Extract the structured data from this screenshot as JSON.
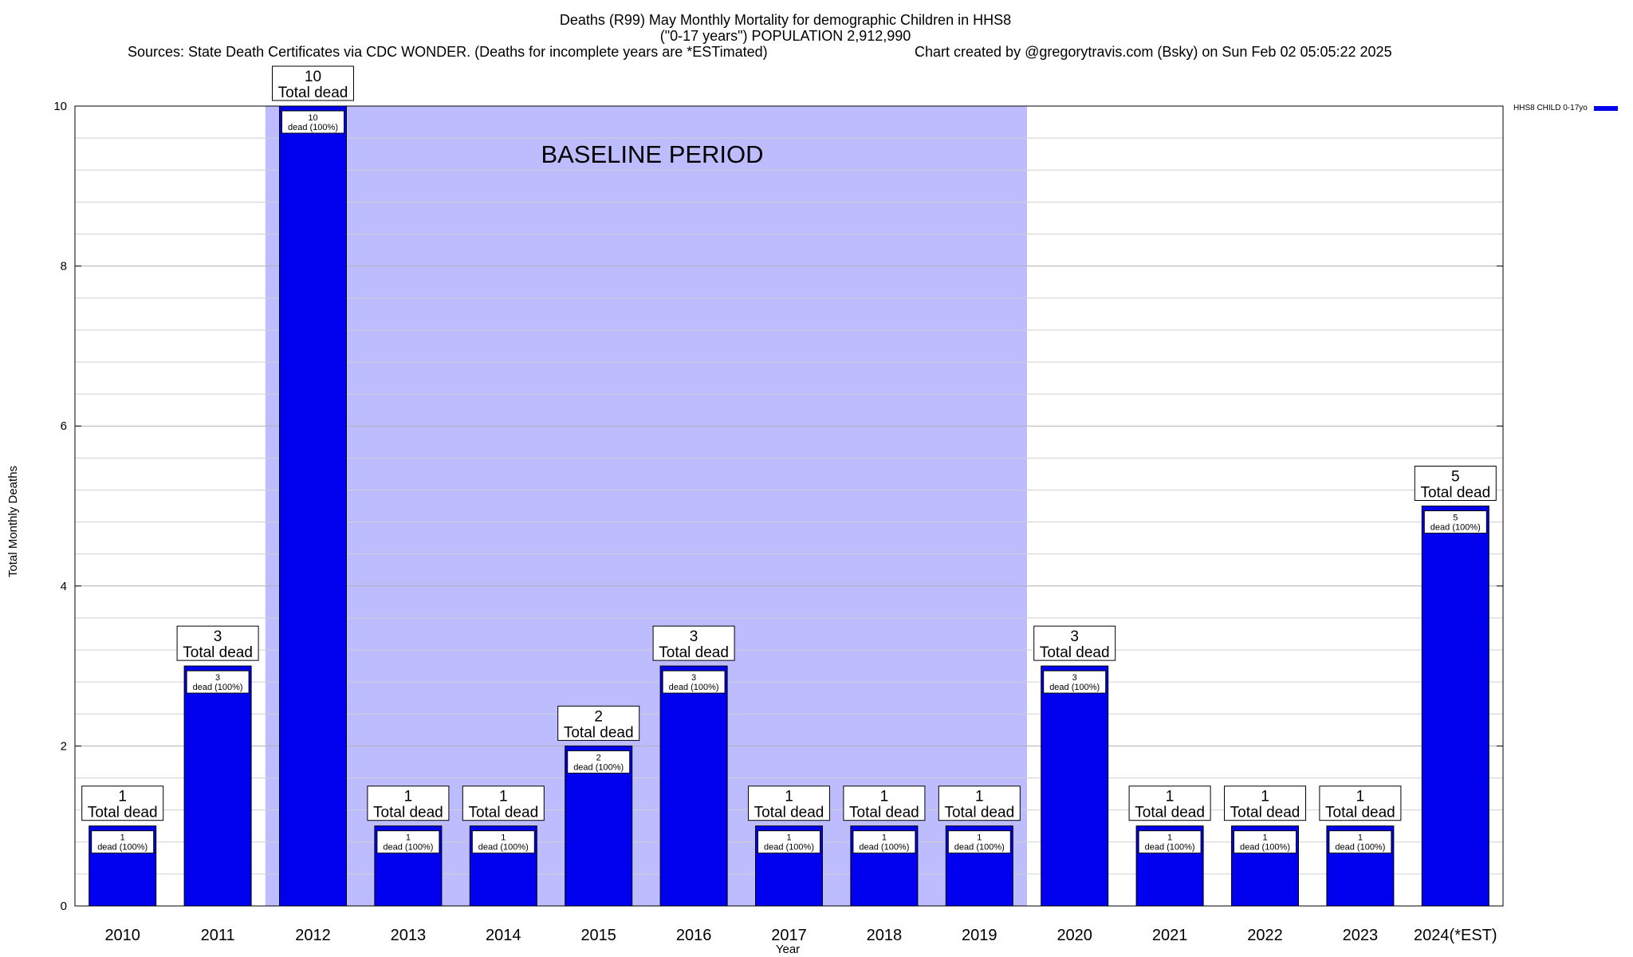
{
  "chart_data": {
    "type": "bar",
    "title": "Deaths (R99) May Monthly Mortality for demographic Children in HHS8",
    "subtitle": "(\"0-17 years\") POPULATION 2,912,990",
    "sources": "Sources: State Death Certificates via CDC WONDER. (Deaths for incomplete years are *ESTimated)",
    "credit": "Chart created by @gregorytravis.com (Bsky) on Sun Feb 02 05:05:22 2025",
    "xlabel": "Year",
    "ylabel": "Total Monthly Deaths",
    "ylim": [
      0,
      10
    ],
    "yticks": [
      0,
      2,
      4,
      6,
      8,
      10
    ],
    "minor_gridline_step": 0.4,
    "grid": true,
    "legend_position": "top-right",
    "categories": [
      "2010",
      "2011",
      "2012",
      "2013",
      "2014",
      "2015",
      "2016",
      "2017",
      "2018",
      "2019",
      "2020",
      "2021",
      "2022",
      "2023",
      "2024(*EST)"
    ],
    "series": [
      {
        "name": "HHS8 CHILD 0-17yo",
        "color": "#0000ee",
        "values": [
          1,
          3,
          10,
          1,
          1,
          2,
          3,
          1,
          1,
          1,
          3,
          1,
          1,
          1,
          5
        ]
      }
    ],
    "top_label_text": "Total dead",
    "inner_label_text": "dead (100%)",
    "baseline_period": {
      "label": "BASELINE PERIOD",
      "from": "2012",
      "to": "2019",
      "color": "#bcbcff"
    }
  }
}
